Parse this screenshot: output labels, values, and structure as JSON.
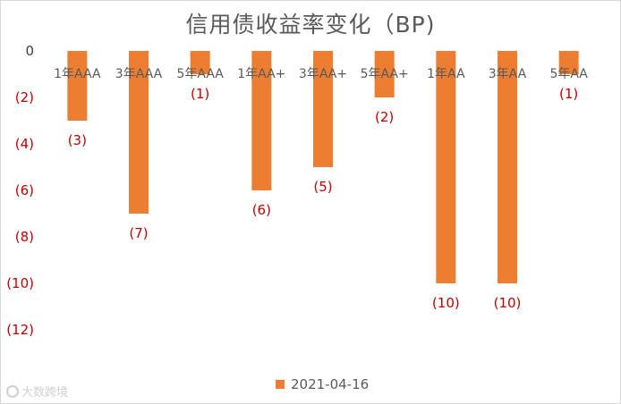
{
  "chart_data": {
    "type": "bar",
    "title": "信用债收益率变化（BP)",
    "categories": [
      "1年AAA",
      "3年AAA",
      "5年AAA",
      "1年AA+",
      "3年AA+",
      "5年AA+",
      "1年AA",
      "3年AA",
      "5年AA"
    ],
    "series": [
      {
        "name": "2021-04-16",
        "values": [
          -3,
          -7,
          -1,
          -6,
          -5,
          -2,
          -10,
          -10,
          -1
        ],
        "color": "#ed7d31"
      }
    ],
    "data_labels": [
      "(3)",
      "(7)",
      "(1)",
      "(6)",
      "(5)",
      "(2)",
      "(10)",
      "(10)",
      "(1)"
    ],
    "ylim": [
      -12,
      0
    ],
    "yticks": [
      0,
      -2,
      -4,
      -6,
      -8,
      -10,
      -12
    ],
    "ytick_labels": [
      "0",
      "(2)",
      "(4)",
      "(6)",
      "(8)",
      "(10)",
      "(12)"
    ],
    "grid": false,
    "legend_position": "bottom"
  },
  "watermark_text": "大数跨境"
}
